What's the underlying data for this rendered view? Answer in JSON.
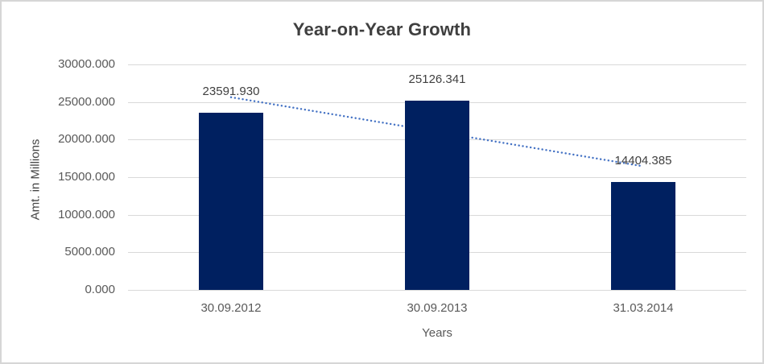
{
  "chart": {
    "title": "Year-on-Year Growth",
    "y_axis_title": "Amt. in Millions",
    "x_axis_title": "Years"
  },
  "chart_data": {
    "type": "bar",
    "title": "Year-on-Year Growth",
    "xlabel": "Years",
    "ylabel": "Amt. in Millions",
    "categories": [
      "30.09.2012",
      "30.09.2013",
      "31.03.2014"
    ],
    "values": [
      23591.93,
      25126.341,
      14404.385
    ],
    "data_labels": [
      "23591.930",
      "25126.341",
      "14404.385"
    ],
    "ylim": [
      0,
      30000
    ],
    "ytick_step": 5000,
    "ytick_labels": [
      "0.000",
      "5000.000",
      "10000.000",
      "15000.000",
      "20000.000",
      "25000.000",
      "30000.000"
    ],
    "grid": true,
    "legend_position": "none",
    "bar_color": "#002060",
    "trendline": {
      "type": "linear",
      "line_style": "dotted",
      "color": "#4472C4",
      "endpoint_values": [
        25634.7,
        16447.1
      ]
    },
    "style_colors": {
      "gridline": "#d9d9d9",
      "axis_text": "#595959",
      "title_text": "#3f3f3f",
      "data_label_text": "#404040",
      "frame_border": "#d6d6d6"
    }
  }
}
